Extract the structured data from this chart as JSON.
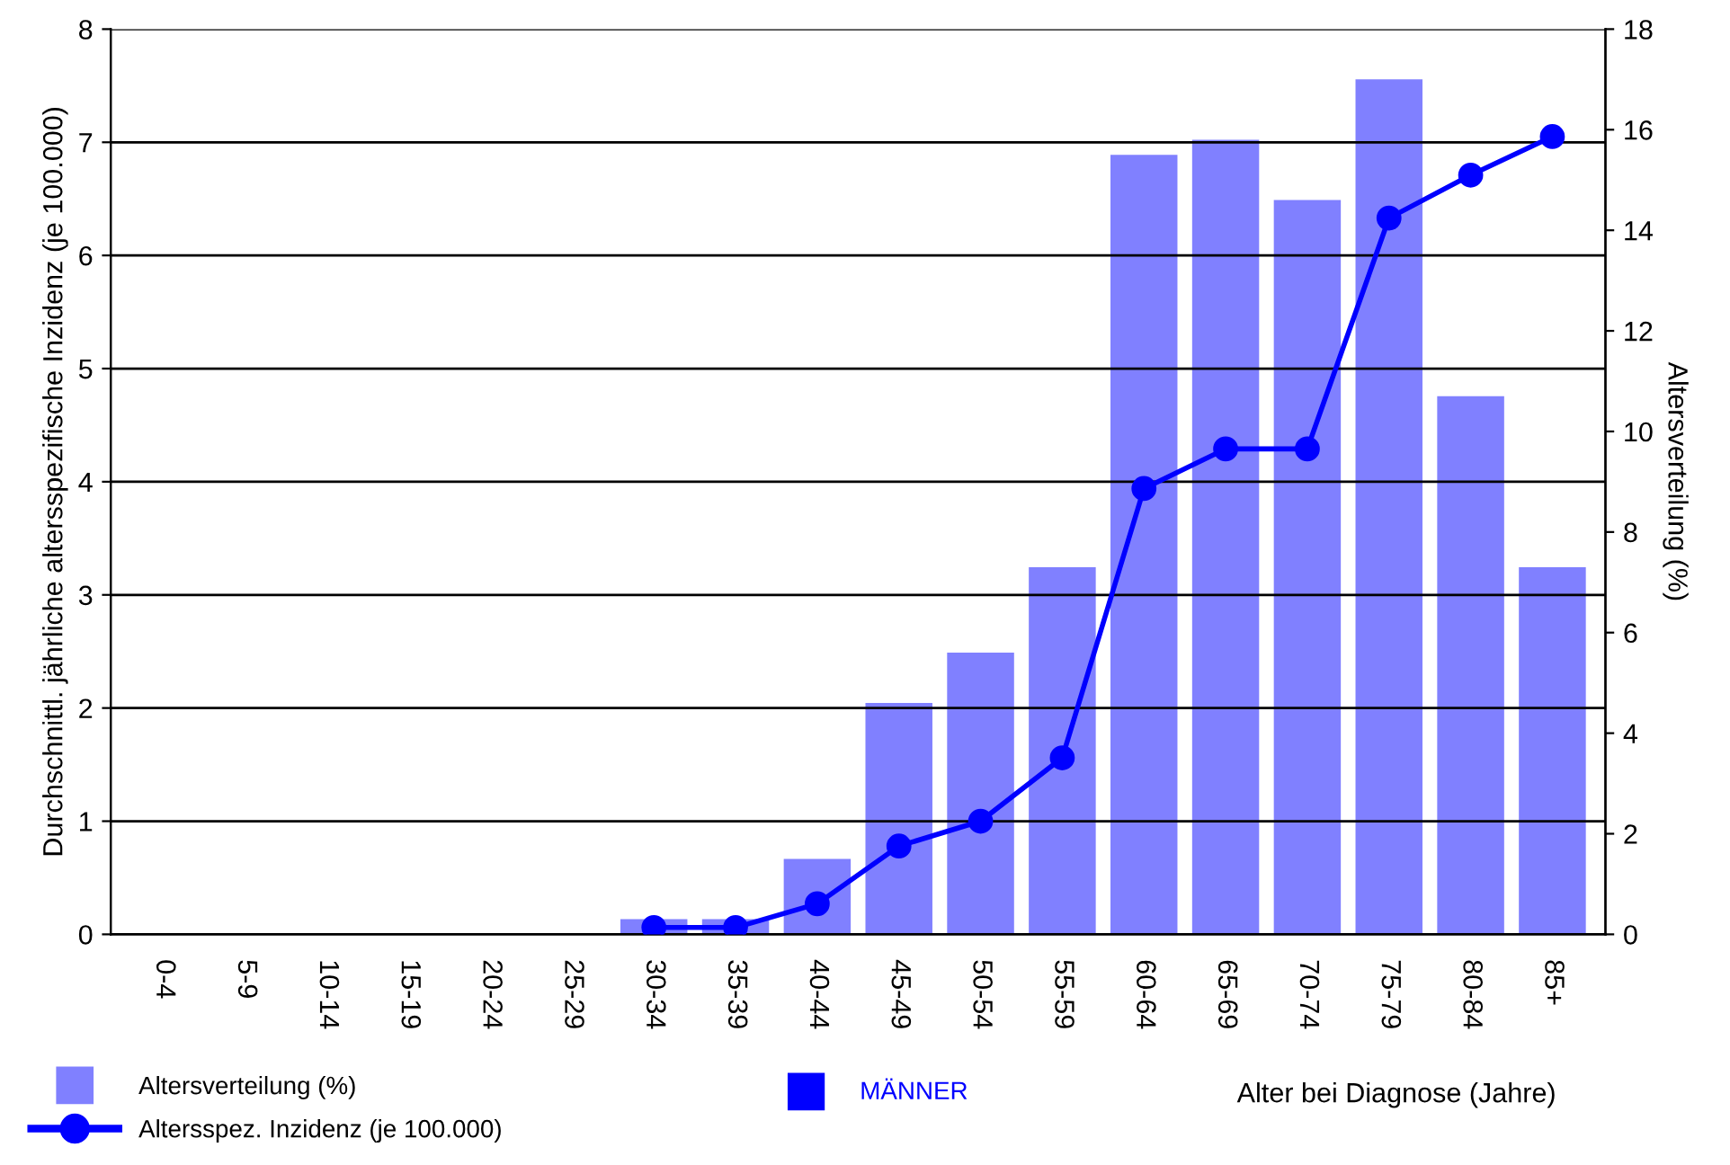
{
  "chart_data": {
    "type": "bar",
    "xlabel": "Alter bei Diagnose (Jahre)",
    "ylabel": "Durchschnittl. jährliche altersspezifische Inzidenz (je 100.000)",
    "y2label": "Altersverteilung (%)",
    "categories": [
      "0-4",
      "5-9",
      "10-14",
      "15-19",
      "20-24",
      "25-29",
      "30-34",
      "35-39",
      "40-44",
      "45-49",
      "50-54",
      "55-59",
      "60-64",
      "65-69",
      "70-74",
      "75-79",
      "80-84",
      "85+"
    ],
    "series": [
      {
        "name": "Altersverteilung (%)",
        "axis": "y2",
        "color": "#8080ff",
        "values": [
          0,
          0,
          0,
          0,
          0,
          0,
          0.3,
          0.3,
          1.5,
          4.6,
          5.6,
          7.3,
          15.5,
          15.8,
          14.6,
          17.0,
          10.7,
          7.3
        ]
      },
      {
        "name": "Altersspez. Inzidenz (je 100.000)",
        "type": "line",
        "color": "#0000ff",
        "marker": "circle",
        "values": [
          null,
          null,
          null,
          null,
          null,
          null,
          0.06,
          0.06,
          0.27,
          0.78,
          1.0,
          1.56,
          3.94,
          4.29,
          4.29,
          6.33,
          6.71,
          7.05
        ]
      }
    ],
    "ylim": [
      0,
      8
    ],
    "yticks": [
      0,
      1,
      2,
      3,
      4,
      5,
      6,
      7,
      8
    ],
    "y2lim": [
      0,
      18
    ],
    "y2ticks": [
      0,
      2,
      4,
      6,
      8,
      10,
      12,
      14,
      16,
      18
    ],
    "grid": "y",
    "legend": "bottom left",
    "annotations": [
      "MÄNNER"
    ]
  }
}
